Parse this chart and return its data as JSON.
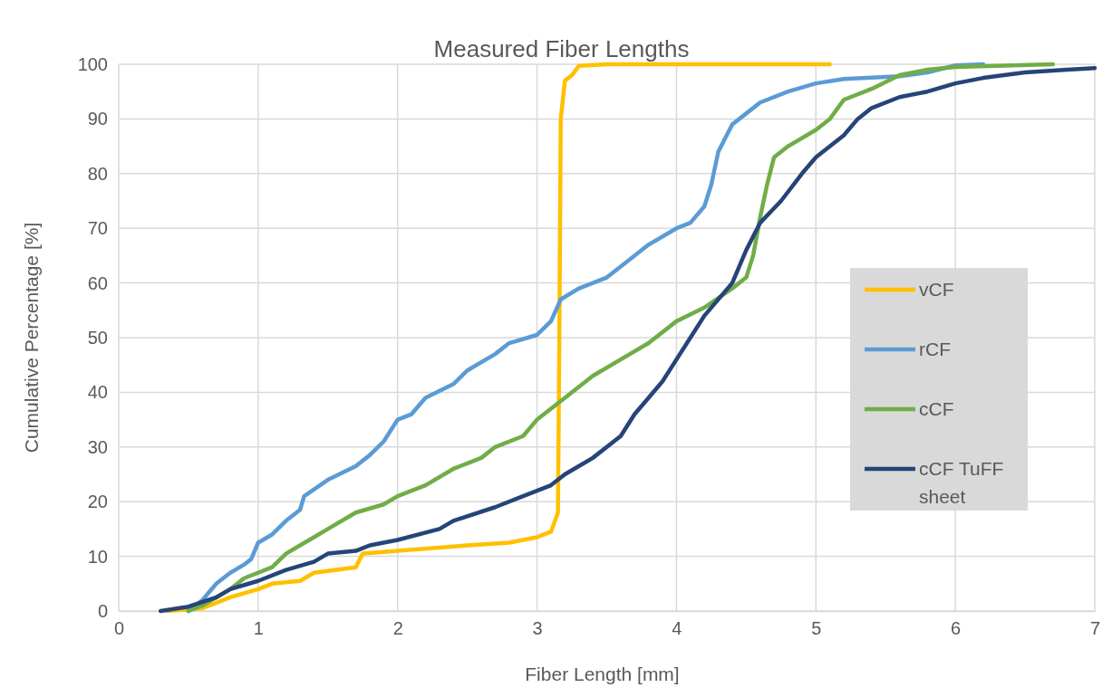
{
  "chart_data": {
    "type": "line",
    "title": "Measured Fiber Lengths",
    "xlabel": "Fiber Length [mm]",
    "ylabel": "Cumulative Percentage [%]",
    "xlim": [
      0,
      7
    ],
    "xticks": [
      0,
      1,
      2,
      3,
      4,
      5,
      6,
      7
    ],
    "ylim": [
      0,
      100
    ],
    "yticks": [
      0,
      10,
      20,
      30,
      40,
      50,
      60,
      70,
      80,
      90,
      100
    ],
    "grid": true,
    "legend": "right",
    "marker": "none",
    "line_style": "solid",
    "series": [
      {
        "name": "vCF",
        "color": "#ffc000",
        "x": [
          0.35,
          0.6,
          0.8,
          1,
          1.1,
          1.3,
          1.4,
          1.7,
          1.75,
          2,
          2.5,
          2.8,
          3,
          3.1,
          3.15,
          3.16,
          3.17,
          3.2,
          3.25,
          3.3,
          3.5,
          5.1
        ],
        "values": [
          0,
          0.5,
          2.5,
          4,
          5,
          5.5,
          7,
          8,
          10.5,
          11,
          12,
          12.5,
          13.5,
          14.5,
          18,
          50,
          90,
          97,
          98,
          99.7,
          100,
          100
        ]
      },
      {
        "name": "rCF",
        "color": "#5b9bd5",
        "x": [
          0.5,
          0.6,
          0.7,
          0.8,
          0.9,
          0.95,
          1,
          1.1,
          1.2,
          1.3,
          1.33,
          1.5,
          1.7,
          1.8,
          1.9,
          2,
          2.1,
          2.2,
          2.4,
          2.5,
          2.7,
          2.8,
          3,
          3.1,
          3.17,
          3.3,
          3.5,
          3.6,
          3.8,
          4,
          4.1,
          4.2,
          4.25,
          4.3,
          4.4,
          4.5,
          4.6,
          4.8,
          5,
          5.2,
          5.6,
          5.8,
          6,
          6.2
        ],
        "values": [
          0,
          2,
          5,
          7,
          8.5,
          9.5,
          12.5,
          14,
          16.5,
          18.5,
          21,
          24,
          26.5,
          28.5,
          31,
          35,
          36,
          39,
          41.5,
          44,
          47,
          49,
          50.5,
          53,
          57,
          59,
          61,
          63,
          67,
          70,
          71,
          74,
          78,
          84,
          89,
          91,
          93,
          95,
          96.5,
          97.3,
          97.8,
          98.5,
          99.8,
          100
        ]
      },
      {
        "name": "cCF",
        "color": "#70ad47",
        "x": [
          0.5,
          0.6,
          0.8,
          0.9,
          1.1,
          1.2,
          1.3,
          1.4,
          1.5,
          1.7,
          1.9,
          2,
          2.2,
          2.4,
          2.6,
          2.7,
          2.9,
          3,
          3.2,
          3.4,
          3.6,
          3.8,
          4,
          4.2,
          4.4,
          4.5,
          4.55,
          4.6,
          4.65,
          4.7,
          4.8,
          5,
          5.1,
          5.2,
          5.4,
          5.6,
          5.8,
          6,
          6.7
        ],
        "values": [
          0,
          1,
          4,
          6,
          8,
          10.5,
          12,
          13.5,
          15,
          18,
          19.5,
          21,
          23,
          26,
          28,
          30,
          32,
          35,
          39,
          43,
          46,
          49,
          53,
          55.5,
          59,
          61,
          65,
          72,
          78,
          83,
          85,
          88,
          90,
          93.5,
          95.5,
          98,
          99,
          99.5,
          100
        ]
      },
      {
        "name": "cCF TuFF sheet",
        "color": "#264478",
        "x": [
          0.3,
          0.5,
          0.7,
          0.8,
          1,
          1.2,
          1.4,
          1.5,
          1.7,
          1.8,
          2,
          2.3,
          2.4,
          2.7,
          2.9,
          3.1,
          3.2,
          3.4,
          3.6,
          3.7,
          3.8,
          3.9,
          4,
          4.1,
          4.2,
          4.4,
          4.5,
          4.6,
          4.75,
          4.9,
          5,
          5.2,
          5.3,
          5.4,
          5.6,
          5.8,
          6,
          6.2,
          6.5,
          6.8,
          7
        ],
        "values": [
          0,
          0.8,
          2.5,
          4,
          5.5,
          7.5,
          9,
          10.5,
          11,
          12,
          13,
          15,
          16.5,
          19,
          21,
          23,
          25,
          28,
          32,
          36,
          39,
          42,
          46,
          50,
          54,
          60,
          66,
          71,
          75,
          80,
          83,
          87,
          90,
          92,
          94,
          95,
          96.5,
          97.5,
          98.5,
          99,
          99.3
        ]
      }
    ]
  }
}
